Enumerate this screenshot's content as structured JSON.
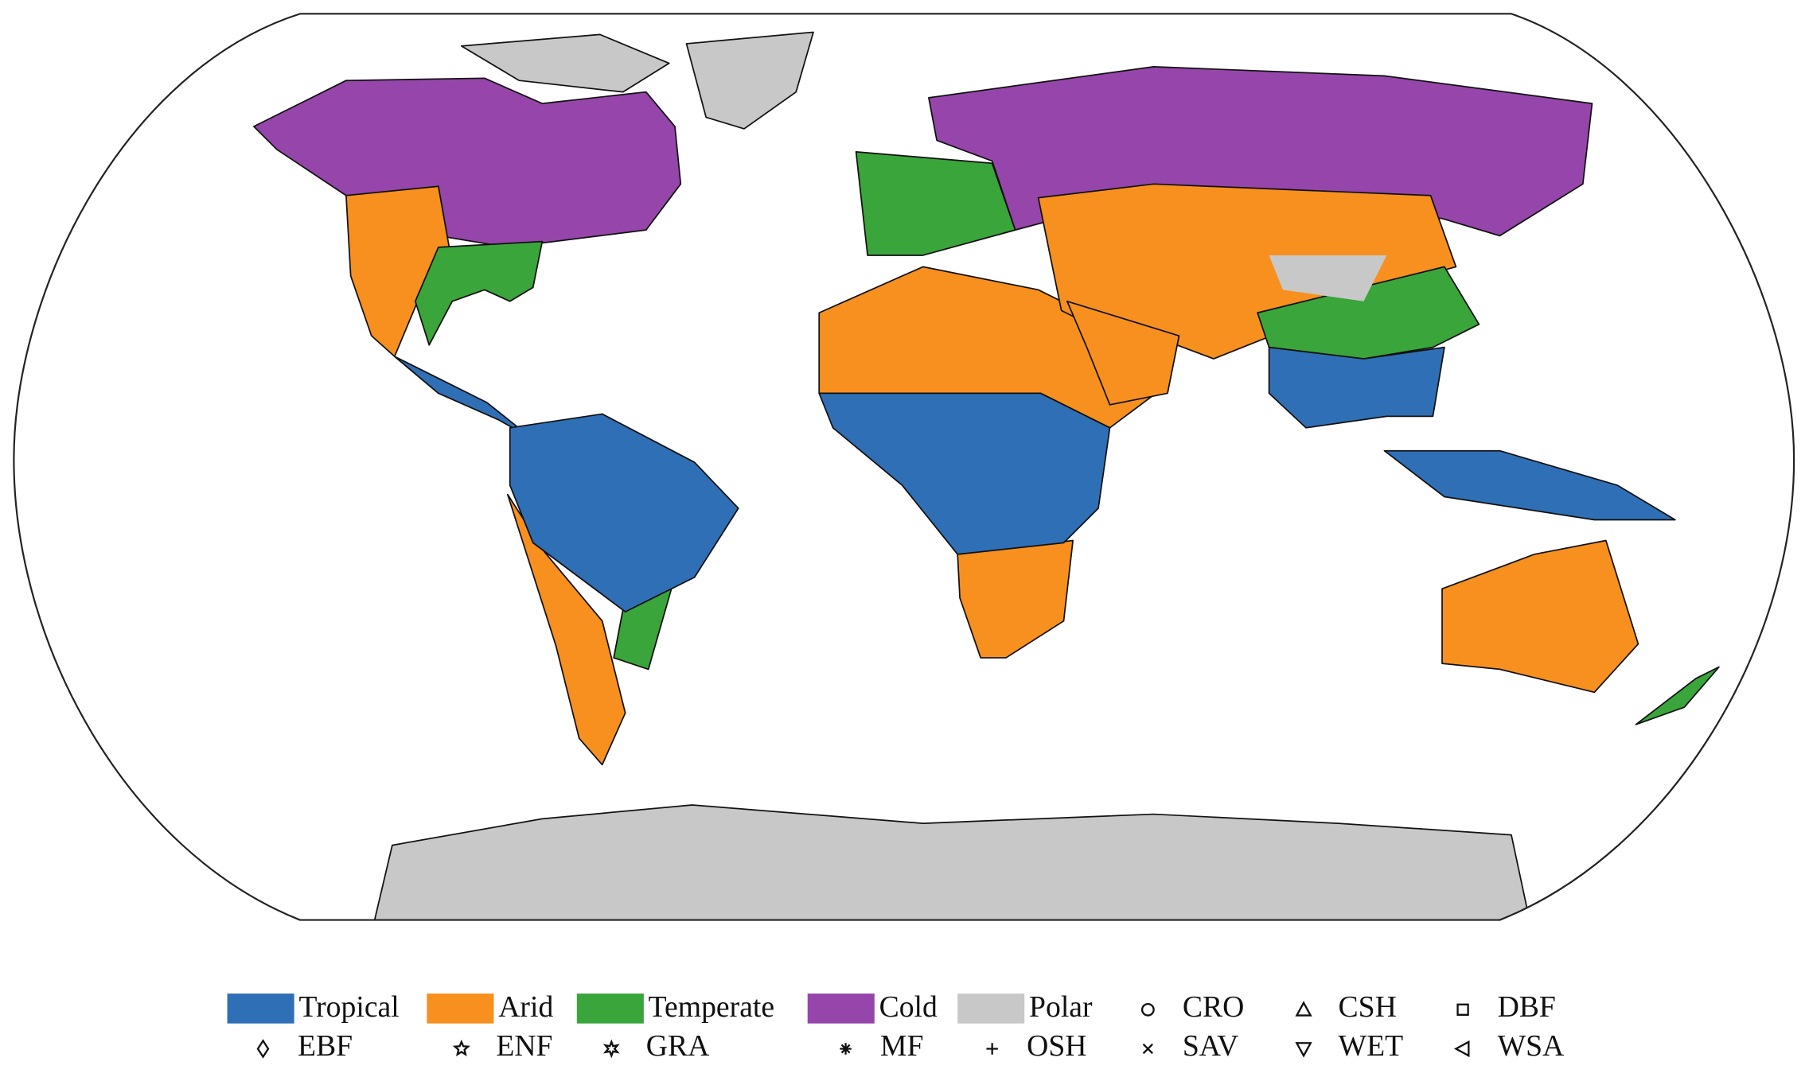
{
  "legend": {
    "climate_zones": [
      {
        "name": "Tropical",
        "color": "#2f6fb5"
      },
      {
        "name": "Arid",
        "color": "#f7901e"
      },
      {
        "name": "Temperate",
        "color": "#3aa53a"
      },
      {
        "name": "Cold",
        "color": "#9645ab"
      },
      {
        "name": "Polar",
        "color": "#c8c8c8"
      }
    ],
    "site_types": [
      "CRO",
      "CSH",
      "DBF",
      "EBF",
      "ENF",
      "GRA",
      "MF",
      "OSH",
      "SAV",
      "WET",
      "WSA"
    ]
  }
}
